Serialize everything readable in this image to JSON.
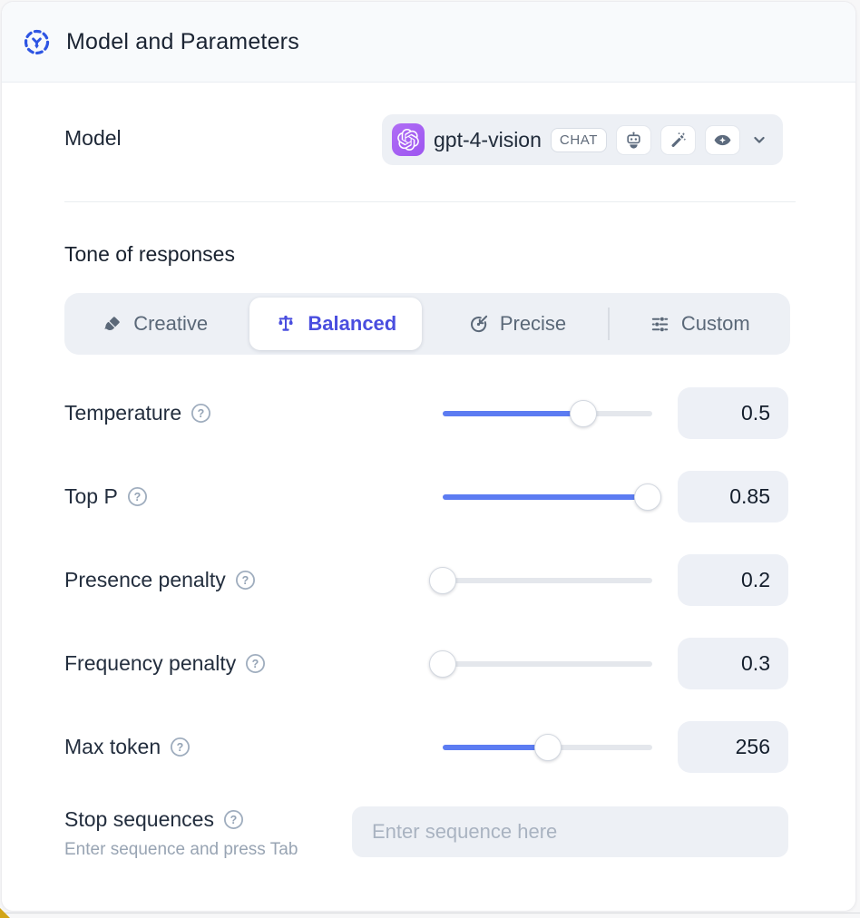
{
  "header": {
    "title": "Model and Parameters",
    "icon": "model-hub-icon"
  },
  "model": {
    "label": "Model",
    "selected_model": "gpt-4-vision",
    "provider_icon": "openai-logo",
    "type_badge": "CHAT",
    "capability_icons": [
      "robot-icon",
      "magic-wand-icon",
      "vision-eye-icon"
    ],
    "chevron_icon": "chevron-down-icon"
  },
  "tone": {
    "heading": "Tone of responses",
    "options": [
      {
        "label": "Creative",
        "icon": "paintbrush-icon",
        "selected": false
      },
      {
        "label": "Balanced",
        "icon": "balance-scale-icon",
        "selected": true
      },
      {
        "label": "Precise",
        "icon": "target-icon",
        "selected": false
      },
      {
        "label": "Custom",
        "icon": "sliders-icon",
        "selected": false
      }
    ]
  },
  "parameters": [
    {
      "label": "Temperature",
      "value": "0.5",
      "fill_pct": 67,
      "help_icon": "question-circle-icon"
    },
    {
      "label": "Top P",
      "value": "0.85",
      "fill_pct": 98,
      "help_icon": "question-circle-icon"
    },
    {
      "label": "Presence penalty",
      "value": "0.2",
      "fill_pct": 0,
      "help_icon": "question-circle-icon"
    },
    {
      "label": "Frequency penalty",
      "value": "0.3",
      "fill_pct": 0,
      "help_icon": "question-circle-icon"
    },
    {
      "label": "Max token",
      "value": "256",
      "fill_pct": 50,
      "help_icon": "question-circle-icon"
    }
  ],
  "stop_sequences": {
    "label": "Stop sequences",
    "helper": "Enter sequence and press Tab",
    "placeholder": "Enter sequence here",
    "help_icon": "question-circle-icon"
  },
  "colors": {
    "accent_blue": "#5c7cf2",
    "accent_indigo": "#4a4edf",
    "header_icon_blue": "#2e55e3",
    "openai_badge_purple": "#a765f4",
    "control_bg": "#edf0f5"
  }
}
